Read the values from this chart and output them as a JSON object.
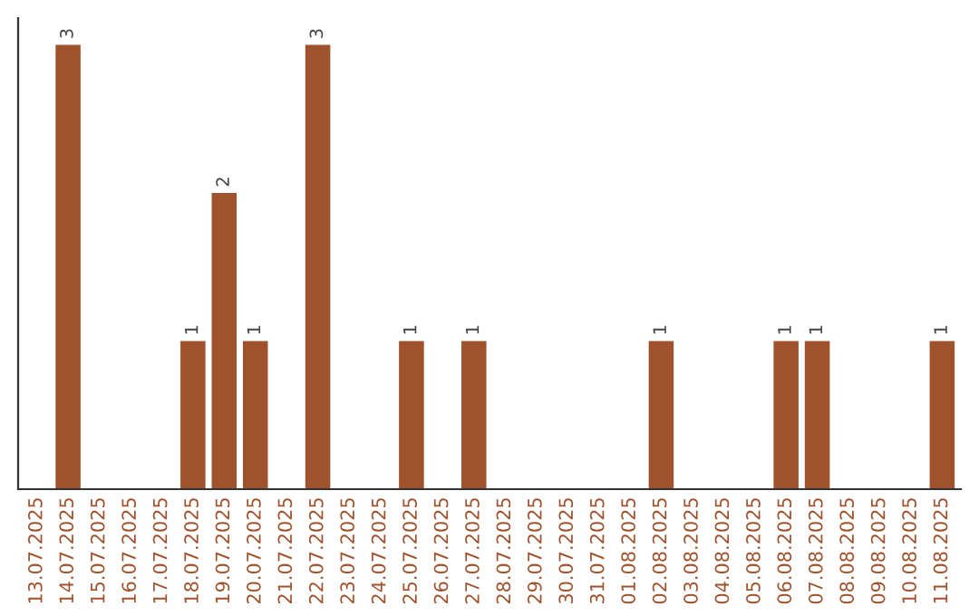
{
  "chart_data": {
    "type": "bar",
    "categories": [
      "13.07.2025",
      "14.07.2025",
      "15.07.2025",
      "16.07.2025",
      "17.07.2025",
      "18.07.2025",
      "19.07.2025",
      "20.07.2025",
      "21.07.2025",
      "22.07.2025",
      "23.07.2025",
      "24.07.2025",
      "25.07.2025",
      "26.07.2025",
      "27.07.2025",
      "28.07.2025",
      "29.07.2025",
      "30.07.2025",
      "31.07.2025",
      "01.08.2025",
      "02.08.2025",
      "03.08.2025",
      "04.08.2025",
      "05.08.2025",
      "06.08.2025",
      "07.08.2025",
      "08.08.2025",
      "09.08.2025",
      "10.08.2025",
      "11.08.2025"
    ],
    "values": [
      0,
      3,
      0,
      0,
      0,
      1,
      2,
      1,
      0,
      3,
      0,
      0,
      1,
      0,
      1,
      0,
      0,
      0,
      0,
      0,
      1,
      0,
      0,
      0,
      1,
      1,
      0,
      0,
      0,
      1
    ],
    "value_labels": [
      null,
      "3",
      null,
      null,
      null,
      "1",
      "2",
      "1",
      null,
      "3",
      null,
      null,
      "1",
      null,
      "1",
      null,
      null,
      null,
      null,
      null,
      "1",
      null,
      null,
      null,
      "1",
      "1",
      null,
      null,
      null,
      "1"
    ],
    "color": "#a0522d",
    "grid": false,
    "legend": false,
    "tick_labels": "x"
  }
}
